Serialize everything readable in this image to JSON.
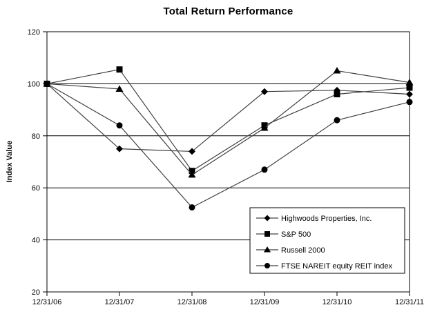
{
  "window": {
    "background": "#ffffff"
  },
  "chart_data": {
    "type": "line",
    "title": "Total Return Performance",
    "xlabel": "",
    "ylabel": "Index Value",
    "categories": [
      "12/31/06",
      "12/31/07",
      "12/31/08",
      "12/31/09",
      "12/31/10",
      "12/31/11"
    ],
    "yticks": [
      20,
      40,
      60,
      80,
      100,
      120
    ],
    "ylim": [
      20,
      120
    ],
    "gridline_values": [
      40,
      60,
      80,
      100
    ],
    "grid": "horizontal",
    "legend_position": "inside-bottom-right",
    "legend_border": true,
    "series": [
      {
        "name": "Highwoods Properties, Inc.",
        "marker": "diamond",
        "values": [
          100,
          75,
          74,
          97,
          97.5,
          96
        ]
      },
      {
        "name": "S&P 500",
        "marker": "square",
        "values": [
          100,
          105.5,
          66.5,
          84,
          96,
          98.5
        ]
      },
      {
        "name": "Russell 2000",
        "marker": "triangle",
        "values": [
          100,
          98,
          65,
          83,
          105,
          100.5
        ]
      },
      {
        "name": "FTSE NAREIT equity REIT index",
        "marker": "circle",
        "values": [
          100,
          84,
          52.5,
          67,
          86,
          93
        ]
      }
    ],
    "colors": {
      "line": "#404040",
      "marker": "#000000",
      "axis": "#000000",
      "grid": "#000000",
      "background": "#ffffff",
      "legend_fill": "#ffffff"
    }
  }
}
